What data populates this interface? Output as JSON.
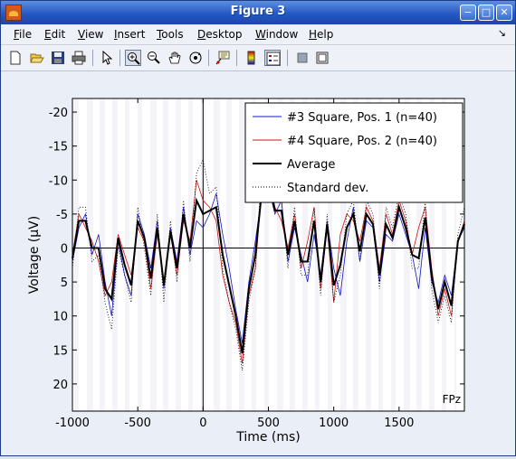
{
  "window": {
    "title": "Figure 3",
    "controls": [
      "minimize",
      "maximize",
      "close"
    ]
  },
  "menu": {
    "items": [
      "File",
      "Edit",
      "View",
      "Insert",
      "Tools",
      "Desktop",
      "Window",
      "Help"
    ],
    "arrow": "↘"
  },
  "toolbar": {
    "buttons": [
      "new-figure-icon",
      "open-file-icon",
      "save-icon",
      "print-icon",
      "edit-plot-icon",
      "zoom-in-icon",
      "zoom-out-icon",
      "pan-icon",
      "rotate-3d-icon",
      "data-cursor-icon",
      "colorbar-icon",
      "legend-icon",
      "hide-tools-icon",
      "show-tools-icon"
    ],
    "pressed": [
      "zoom-in-icon",
      "legend-icon"
    ]
  },
  "chart_data": {
    "type": "line",
    "xlabel": "Time (ms)",
    "ylabel": "Voltage (µV)",
    "xlim": [
      -1000,
      2000
    ],
    "ylim": [
      -22,
      24
    ],
    "y_reversed": true,
    "xticks": [
      -1000,
      -500,
      0,
      500,
      1000,
      1500
    ],
    "yticks": [
      -20,
      -15,
      -10,
      -5,
      0,
      5,
      10,
      15,
      20
    ],
    "annotation": "FPz",
    "legend": {
      "position": "top-right",
      "entries": [
        "#3 Square, Pos. 1 (n=40)",
        "#4 Square, Pos. 2 (n=40)",
        "Average",
        "Standard dev."
      ]
    },
    "series": [
      {
        "name": "#3 Square, Pos. 1 (n=40)",
        "color": "#1414c8",
        "style": "solid",
        "x": [
          -1000,
          -950,
          -900,
          -850,
          -800,
          -750,
          -700,
          -650,
          -600,
          -550,
          -500,
          -450,
          -400,
          -350,
          -300,
          -250,
          -200,
          -150,
          -100,
          -50,
          0,
          50,
          100,
          150,
          200,
          250,
          300,
          350,
          400,
          450,
          500,
          550,
          600,
          650,
          700,
          750,
          800,
          850,
          900,
          950,
          1000,
          1050,
          1100,
          1150,
          1200,
          1250,
          1300,
          1350,
          1400,
          1450,
          1500,
          1550,
          1600,
          1650,
          1700,
          1750,
          1800,
          1850,
          1900,
          1950,
          2000
        ],
        "y": [
          2,
          -3,
          -5,
          1,
          -2,
          5,
          10,
          -1,
          4,
          7,
          -5,
          -2,
          3,
          -4,
          6,
          -3,
          2,
          -6,
          1,
          -4,
          -3,
          -5,
          -8,
          -2,
          3,
          9,
          14,
          5,
          -1,
          -8,
          -9,
          -5,
          -7,
          2,
          -3,
          1,
          5,
          -2,
          4,
          -4,
          3,
          7,
          -1,
          -6,
          2,
          -4,
          -3,
          5,
          -2,
          -1,
          -5,
          -2,
          1,
          6,
          -3,
          5,
          8,
          4,
          7,
          -1,
          -3
        ]
      },
      {
        "name": "#4 Square, Pos. 2 (n=40)",
        "color": "#c81414",
        "style": "solid",
        "x": [
          -1000,
          -950,
          -900,
          -850,
          -800,
          -750,
          -700,
          -650,
          -600,
          -550,
          -500,
          -450,
          -400,
          -350,
          -300,
          -250,
          -200,
          -150,
          -100,
          -50,
          0,
          50,
          100,
          150,
          200,
          250,
          300,
          350,
          400,
          450,
          500,
          550,
          600,
          650,
          700,
          750,
          800,
          850,
          900,
          950,
          1000,
          1050,
          1100,
          1150,
          1200,
          1250,
          1300,
          1350,
          1400,
          1450,
          1500,
          1550,
          1600,
          1650,
          1700,
          1750,
          1800,
          1850,
          1900,
          1950,
          2000
        ],
        "y": [
          1,
          -5,
          -3,
          -1,
          2,
          7,
          5,
          -2,
          1,
          4,
          -3,
          -1,
          6,
          -2,
          5,
          -2,
          4,
          -4,
          -1,
          -10,
          -7,
          -6,
          -4,
          4,
          8,
          11,
          17,
          7,
          3,
          -9,
          -11,
          -6,
          -4,
          0,
          -5,
          3,
          -1,
          -6,
          6,
          -3,
          8,
          -2,
          -5,
          -4,
          -1,
          -6,
          -4,
          3,
          -5,
          -2,
          -7,
          -4,
          1,
          -3,
          -6,
          3,
          10,
          6,
          10,
          -1,
          -4
        ]
      },
      {
        "name": "Average",
        "color": "#000000",
        "style": "solid",
        "x": [
          -1000,
          -950,
          -900,
          -850,
          -800,
          -750,
          -700,
          -650,
          -600,
          -550,
          -500,
          -450,
          -400,
          -350,
          -300,
          -250,
          -200,
          -150,
          -100,
          -50,
          0,
          50,
          100,
          150,
          200,
          250,
          300,
          350,
          400,
          450,
          500,
          550,
          600,
          650,
          700,
          750,
          800,
          850,
          900,
          950,
          1000,
          1050,
          1100,
          1150,
          1200,
          1250,
          1300,
          1350,
          1400,
          1450,
          1500,
          1550,
          1600,
          1650,
          1700,
          1750,
          1800,
          1850,
          1900,
          1950,
          2000
        ],
        "y": [
          1.5,
          -4,
          -4,
          0,
          0,
          6,
          7.5,
          -1.5,
          2.5,
          5.5,
          -4,
          -1.5,
          4.5,
          -3,
          5.5,
          -2.5,
          3,
          -5,
          0,
          -7,
          -5,
          -5.5,
          -6,
          1,
          5.5,
          10,
          15.5,
          6,
          1,
          -8.5,
          -10,
          -5.5,
          -5.5,
          1,
          -4,
          2,
          2,
          -4,
          5,
          -3.5,
          5.5,
          2.5,
          -3,
          -5,
          0.5,
          -5,
          -3.5,
          4,
          -3.5,
          -1.5,
          -6,
          -3,
          1,
          1.5,
          -4.5,
          4,
          9,
          5,
          8.5,
          -1,
          -3.5
        ]
      },
      {
        "name": "Standard dev.",
        "color": "#000000",
        "style": "dotted",
        "x": [
          -1000,
          -950,
          -900,
          -850,
          -800,
          -750,
          -700,
          -650,
          -600,
          -550,
          -500,
          -450,
          -400,
          -350,
          -300,
          -250,
          -200,
          -150,
          -100,
          -50,
          0,
          50,
          100,
          150,
          200,
          250,
          300,
          350,
          400,
          450,
          500,
          550,
          600,
          650,
          700,
          750,
          800,
          850,
          900,
          950,
          1000,
          1050,
          1100,
          1150,
          1200,
          1250,
          1300,
          1350,
          1400,
          1450,
          1500,
          1550,
          1600,
          1650,
          1700,
          1750,
          1800,
          1850,
          1900,
          1950,
          2000
        ],
        "y": [
          3,
          -6,
          -6,
          2,
          1,
          8,
          12,
          0,
          4,
          8,
          -6,
          0,
          7,
          -5,
          8,
          -4,
          5,
          -7,
          2,
          -11,
          -13,
          -8,
          -9,
          3,
          8,
          12,
          18,
          8,
          3,
          -12,
          -13,
          -8,
          -7,
          3,
          -6,
          4,
          4,
          -6,
          7,
          -5,
          8,
          4,
          -5,
          -7,
          2,
          -7,
          -5,
          6,
          -6,
          -3,
          -8,
          -5,
          3,
          3,
          -7,
          6,
          11,
          7,
          11,
          -2,
          -6
        ]
      }
    ],
    "band_fill": "#f4f4f8",
    "grid": false
  }
}
